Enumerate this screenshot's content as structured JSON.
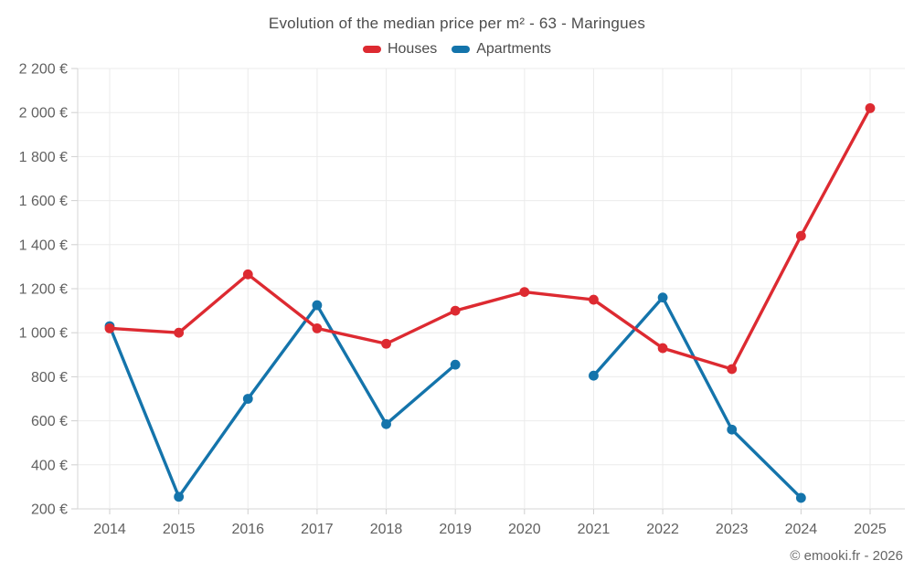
{
  "footer": {
    "attribution": "© emooki.fr - 2026"
  },
  "chart_data": {
    "type": "line",
    "title": "Evolution of the median price per m² - 63 - Maringues",
    "x": [
      2014,
      2015,
      2016,
      2017,
      2018,
      2019,
      2020,
      2021,
      2022,
      2023,
      2024,
      2025
    ],
    "x_tick_labels": [
      "2014",
      "2015",
      "2016",
      "2017",
      "2018",
      "2019",
      "2020",
      "2021",
      "2022",
      "2023",
      "2024",
      "2025"
    ],
    "y_ticks": {
      "values": [
        200,
        400,
        600,
        800,
        1000,
        1200,
        1400,
        1600,
        1800,
        2000,
        2200
      ],
      "labels": [
        "200 €",
        "400 €",
        "600 €",
        "800 €",
        "1 000 €",
        "1 200 €",
        "1 400 €",
        "1 600 €",
        "1 800 €",
        "2 000 €",
        "2 200 €"
      ]
    },
    "ylim": [
      200,
      2200
    ],
    "grid": true,
    "legend_position": "top",
    "currency": "EUR",
    "series": [
      {
        "name": "Houses",
        "color": "#dd2a31",
        "values": [
          1020,
          1000,
          1265,
          1020,
          950,
          1100,
          1185,
          1150,
          930,
          835,
          1440,
          2020
        ]
      },
      {
        "name": "Apartments",
        "color": "#1474ab",
        "values": [
          1030,
          255,
          700,
          1125,
          585,
          855,
          null,
          805,
          1160,
          560,
          250,
          null
        ]
      }
    ],
    "colors": {
      "grid": "#ebebeb",
      "axis_border": "#d6d6d6",
      "tick_mark": "#cfcfcf",
      "label_text": "#616161"
    }
  }
}
